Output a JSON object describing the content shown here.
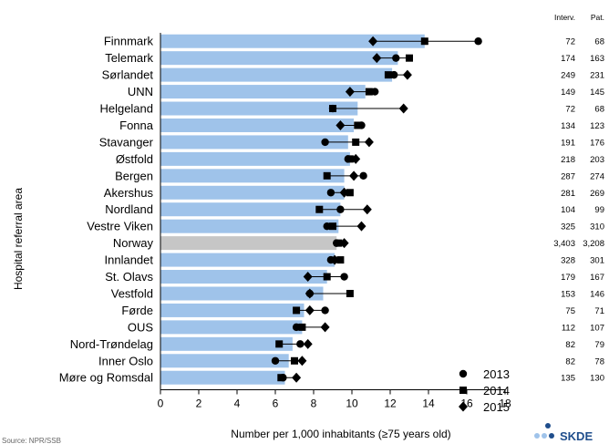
{
  "chart_data": {
    "type": "bar",
    "title": "",
    "xlabel": "Number per 1,000 inhabitants (≥75 years old)",
    "ylabel": "Hospital referral area",
    "xlim": [
      0,
      18
    ],
    "xticks": [
      0,
      2,
      4,
      6,
      8,
      10,
      12,
      14,
      16,
      18
    ],
    "grid": false,
    "legend_position": "bottom-right",
    "highlight_category": "Norway",
    "colors": {
      "bar": "#9fc3ea",
      "highlight_bar": "#c6c6c6",
      "marker": "#000000"
    },
    "categories": [
      "Finnmark",
      "Telemark",
      "Sørlandet",
      "UNN",
      "Helgeland",
      "Fonna",
      "Stavanger",
      "Østfold",
      "Bergen",
      "Akershus",
      "Nordland",
      "Vestre Viken",
      "Norway",
      "Innlandet",
      "St. Olavs",
      "Vestfold",
      "Førde",
      "OUS",
      "Nord-Trøndelag",
      "Inner Oslo",
      "Møre og Romsdal"
    ],
    "bar_values": [
      13.8,
      12.4,
      12.1,
      10.7,
      10.3,
      10.1,
      9.8,
      9.9,
      9.6,
      9.6,
      9.4,
      9.3,
      9.2,
      9.1,
      8.7,
      8.5,
      7.5,
      7.4,
      6.9,
      6.7,
      6.5
    ],
    "series": [
      {
        "name": "2013",
        "marker": "circle",
        "values": [
          16.6,
          12.3,
          12.2,
          11.2,
          9.0,
          10.5,
          8.6,
          9.8,
          10.6,
          8.9,
          9.4,
          8.7,
          9.2,
          8.9,
          9.6,
          7.8,
          8.6,
          7.1,
          7.3,
          6.0,
          6.4
        ]
      },
      {
        "name": "2014",
        "marker": "square",
        "values": [
          13.8,
          13.0,
          11.9,
          10.9,
          9.0,
          10.3,
          10.2,
          9.9,
          8.7,
          9.9,
          8.3,
          9.0,
          9.3,
          9.4,
          8.7,
          9.9,
          7.1,
          7.4,
          6.2,
          7.0,
          6.3
        ]
      },
      {
        "name": "2015",
        "marker": "diamond",
        "values": [
          11.1,
          11.3,
          12.9,
          9.9,
          12.7,
          9.4,
          10.9,
          10.2,
          10.1,
          9.6,
          10.8,
          10.5,
          9.6,
          9.1,
          7.7,
          7.8,
          7.8,
          8.6,
          7.7,
          7.4,
          7.1
        ]
      }
    ],
    "table": {
      "headers": [
        "Interv.",
        "Pat."
      ],
      "interv": [
        "72",
        "174",
        "249",
        "149",
        "72",
        "134",
        "191",
        "218",
        "287",
        "281",
        "104",
        "325",
        "3,403",
        "328",
        "179",
        "153",
        "75",
        "112",
        "82",
        "82",
        "135"
      ],
      "pat": [
        "68",
        "163",
        "231",
        "145",
        "68",
        "123",
        "176",
        "203",
        "274",
        "269",
        "99",
        "310",
        "3,208",
        "301",
        "167",
        "146",
        "71",
        "107",
        "79",
        "78",
        "130"
      ]
    },
    "source_text": "Source: NPR/SSB",
    "logo_text": "SKDE"
  }
}
